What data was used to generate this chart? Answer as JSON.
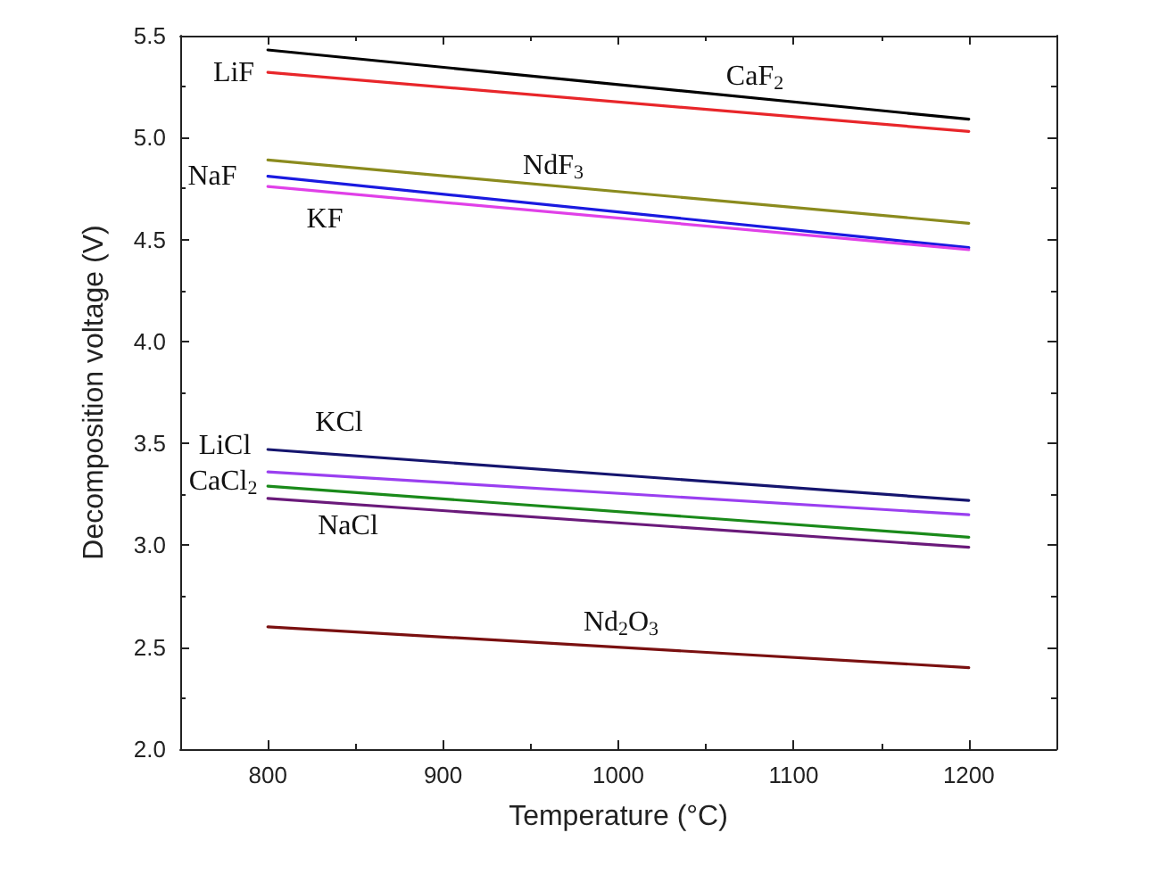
{
  "chart_data": {
    "type": "line",
    "xlabel": "Temperature (°C)",
    "ylabel": "Decomposition voltage (V)",
    "x": [
      800,
      1200
    ],
    "series": [
      {
        "color": "#000000",
        "values": [
          5.43,
          5.09
        ]
      },
      {
        "color": "#e8262a",
        "values": [
          5.32,
          5.03
        ]
      },
      {
        "color": "#8b8b1e",
        "values": [
          4.89,
          4.58
        ]
      },
      {
        "color": "#1a1ae0",
        "values": [
          4.81,
          4.46
        ]
      },
      {
        "color": "#e040e8",
        "values": [
          4.76,
          4.45
        ]
      },
      {
        "color": "#15156e",
        "values": [
          3.47,
          3.22
        ]
      },
      {
        "color": "#9a3ff0",
        "values": [
          3.36,
          3.15
        ]
      },
      {
        "color": "#1a8a1a",
        "values": [
          3.29,
          3.04
        ]
      },
      {
        "color": "#6a1a7a",
        "values": [
          3.23,
          2.99
        ]
      },
      {
        "color": "#7a1010",
        "values": [
          2.6,
          2.4
        ]
      }
    ],
    "xlim": [
      750,
      1250
    ],
    "xticks": [
      800,
      900,
      1000,
      1100,
      1200
    ],
    "ylim": [
      2.0,
      5.5
    ],
    "yticks": [
      {
        "value": 2,
        "label": "2.0"
      },
      {
        "value": 2.5,
        "label": "2.5"
      },
      {
        "value": 3,
        "label": "3.0"
      },
      {
        "value": 3.5,
        "label": "3.5"
      },
      {
        "value": 4,
        "label": "4.0"
      },
      {
        "value": 4.5,
        "label": "4.5"
      },
      {
        "value": 5,
        "label": "5.0"
      },
      {
        "value": 5.5,
        "label": "5.5"
      }
    ],
    "grid": false,
    "marker": "none",
    "line_style": "solid",
    "annotations": [
      "CaF$_{2}$",
      "LiF",
      "NdF$_{3}$",
      "NaF",
      "KF",
      "KCl",
      "LiCl",
      "CaCl$_{2}$",
      "NaCl",
      "Nd$_{2}$O$_{3}$"
    ]
  }
}
